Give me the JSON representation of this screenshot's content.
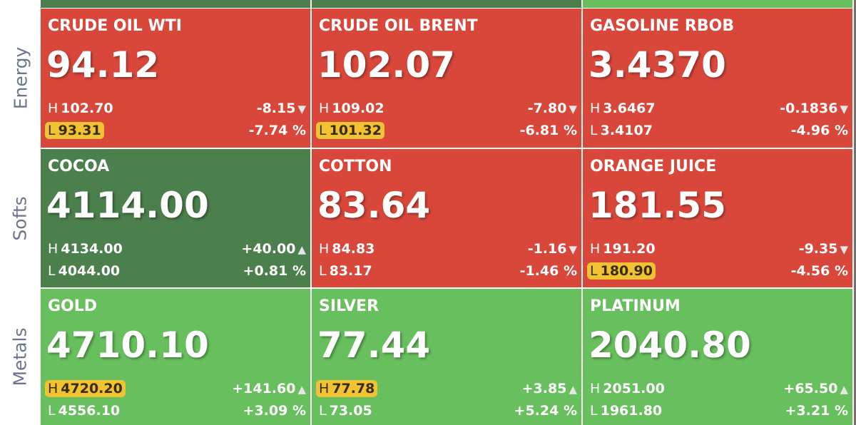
{
  "high_label": "H",
  "low_label": "L",
  "groups": [
    {
      "name": "Energy",
      "tiles": [
        {
          "name": "CRUDE OIL WTI",
          "price": "94.12",
          "high": "102.70",
          "low": "93.31",
          "change": "-8.15",
          "percent": "-7.74 %",
          "direction": "down",
          "highlight": "low",
          "color": "#d9473b"
        },
        {
          "name": "CRUDE OIL BRENT",
          "price": "102.07",
          "high": "109.02",
          "low": "101.32",
          "change": "-7.80",
          "percent": "-6.81 %",
          "direction": "down",
          "highlight": "low",
          "color": "#d9473b"
        },
        {
          "name": "GASOLINE RBOB",
          "price": "3.4370",
          "high": "3.6467",
          "low": "3.4107",
          "change": "-0.1836",
          "percent": "-4.96 %",
          "direction": "down",
          "highlight": null,
          "color": "#d9473b"
        }
      ]
    },
    {
      "name": "Softs",
      "tiles": [
        {
          "name": "COCOA",
          "price": "4114.00",
          "high": "4134.00",
          "low": "4044.00",
          "change": "+40.00",
          "percent": "+0.81 %",
          "direction": "up",
          "highlight": null,
          "color": "#4b7f4c"
        },
        {
          "name": "COTTON",
          "price": "83.64",
          "high": "84.83",
          "low": "83.17",
          "change": "-1.16",
          "percent": "-1.46 %",
          "direction": "down",
          "highlight": null,
          "color": "#d9473b"
        },
        {
          "name": "ORANGE JUICE",
          "price": "181.55",
          "high": "191.20",
          "low": "180.90",
          "change": "-9.35",
          "percent": "-4.56 %",
          "direction": "down",
          "highlight": "low",
          "color": "#d9473b"
        }
      ]
    },
    {
      "name": "Metals",
      "tiles": [
        {
          "name": "GOLD",
          "price": "4710.10",
          "high": "4720.20",
          "low": "4556.10",
          "change": "+141.60",
          "percent": "+3.09 %",
          "direction": "up",
          "highlight": "high",
          "color": "#68bf5d"
        },
        {
          "name": "SILVER",
          "price": "77.44",
          "high": "77.78",
          "low": "73.05",
          "change": "+3.85",
          "percent": "+5.24 %",
          "direction": "up",
          "highlight": "high",
          "color": "#68bf5d"
        },
        {
          "name": "PLATINUM",
          "price": "2040.80",
          "high": "2051.00",
          "low": "1961.80",
          "change": "+65.50",
          "percent": "+3.21 %",
          "direction": "up",
          "highlight": null,
          "color": "#68bf5d"
        }
      ]
    }
  ]
}
